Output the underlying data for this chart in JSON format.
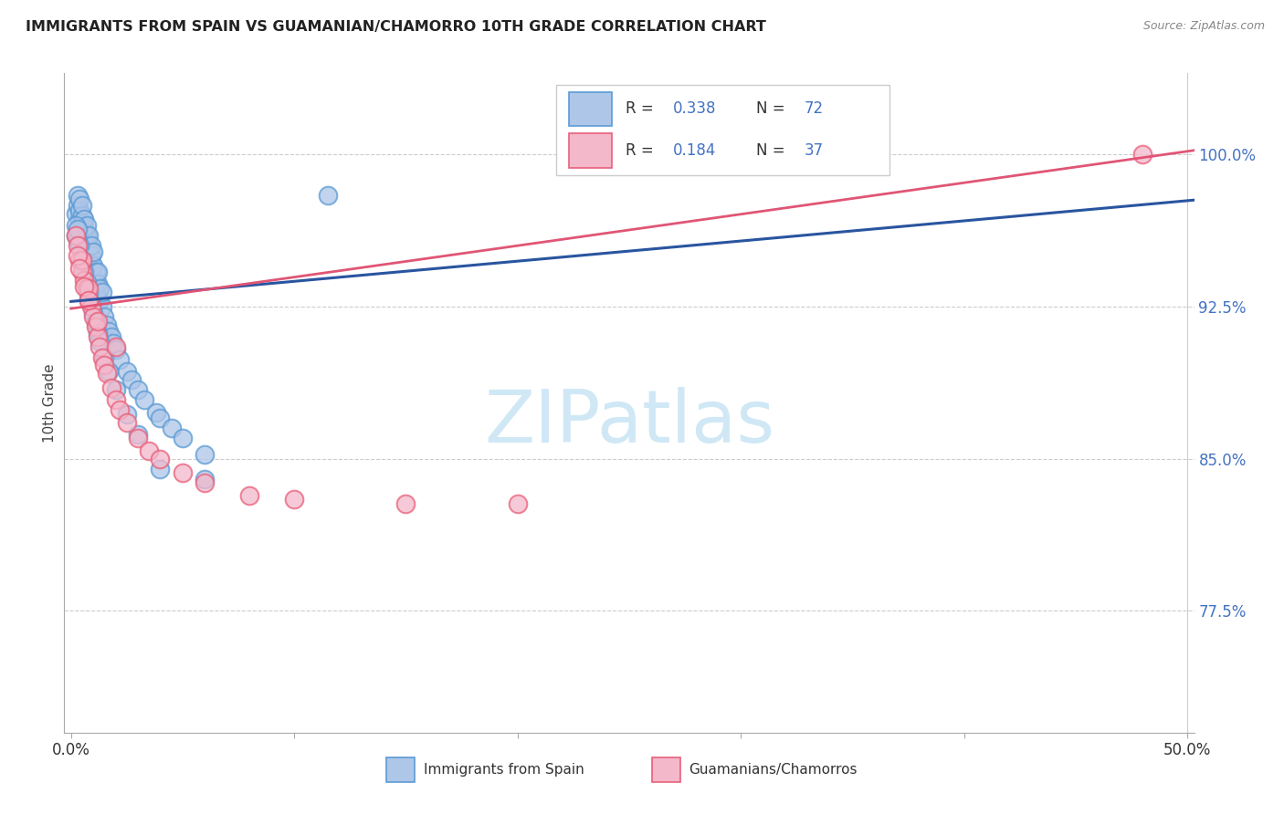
{
  "title": "IMMIGRANTS FROM SPAIN VS GUAMANIAN/CHAMORRO 10TH GRADE CORRELATION CHART",
  "source": "Source: ZipAtlas.com",
  "ylabel": "10th Grade",
  "ylabel_tick_vals": [
    0.775,
    0.85,
    0.925,
    1.0
  ],
  "xlim": [
    -0.003,
    0.503
  ],
  "ylim": [
    0.715,
    1.04
  ],
  "blue_color_face": "#aec6e8",
  "blue_color_edge": "#5b9bd5",
  "pink_color_face": "#f4b8cb",
  "pink_color_edge": "#e8607a",
  "trendline_blue": "#2955a0",
  "trendline_pink": "#e05575",
  "watermark_color": "#d0e8f5",
  "watermark_text": "ZIPatlas",
  "legend_label1": "Immigrants from Spain",
  "legend_label2": "Guamanians/Chamorros",
  "blue_trendline_x": [
    0.0,
    0.503
  ],
  "blue_trendline_y": [
    0.9275,
    0.9775
  ],
  "pink_trendline_x": [
    0.0,
    0.503
  ],
  "pink_trendline_y": [
    0.924,
    1.002
  ],
  "blue_x": [
    0.002,
    0.003,
    0.003,
    0.004,
    0.004,
    0.004,
    0.005,
    0.005,
    0.005,
    0.005,
    0.006,
    0.006,
    0.006,
    0.007,
    0.007,
    0.007,
    0.008,
    0.008,
    0.008,
    0.009,
    0.009,
    0.009,
    0.01,
    0.01,
    0.01,
    0.011,
    0.011,
    0.012,
    0.012,
    0.012,
    0.013,
    0.013,
    0.014,
    0.014,
    0.015,
    0.016,
    0.017,
    0.018,
    0.019,
    0.02,
    0.022,
    0.025,
    0.027,
    0.03,
    0.033,
    0.038,
    0.04,
    0.045,
    0.05,
    0.06,
    0.002,
    0.002,
    0.003,
    0.003,
    0.004,
    0.005,
    0.006,
    0.007,
    0.008,
    0.009,
    0.01,
    0.011,
    0.012,
    0.013,
    0.015,
    0.017,
    0.02,
    0.025,
    0.03,
    0.04,
    0.06,
    0.115
  ],
  "blue_y": [
    0.971,
    0.975,
    0.98,
    0.968,
    0.972,
    0.978,
    0.963,
    0.967,
    0.97,
    0.975,
    0.96,
    0.964,
    0.968,
    0.955,
    0.96,
    0.965,
    0.95,
    0.955,
    0.96,
    0.945,
    0.95,
    0.955,
    0.94,
    0.945,
    0.952,
    0.936,
    0.942,
    0.93,
    0.936,
    0.942,
    0.928,
    0.934,
    0.925,
    0.932,
    0.92,
    0.916,
    0.913,
    0.91,
    0.907,
    0.904,
    0.899,
    0.893,
    0.889,
    0.884,
    0.879,
    0.873,
    0.87,
    0.865,
    0.86,
    0.852,
    0.96,
    0.965,
    0.958,
    0.963,
    0.955,
    0.948,
    0.942,
    0.937,
    0.931,
    0.926,
    0.922,
    0.917,
    0.912,
    0.908,
    0.9,
    0.893,
    0.884,
    0.872,
    0.862,
    0.845,
    0.84,
    0.98
  ],
  "pink_x": [
    0.002,
    0.003,
    0.004,
    0.005,
    0.005,
    0.006,
    0.007,
    0.008,
    0.008,
    0.009,
    0.01,
    0.011,
    0.012,
    0.013,
    0.014,
    0.015,
    0.016,
    0.018,
    0.02,
    0.022,
    0.025,
    0.03,
    0.035,
    0.04,
    0.05,
    0.06,
    0.08,
    0.1,
    0.15,
    0.2,
    0.003,
    0.004,
    0.006,
    0.008,
    0.012,
    0.02,
    0.48
  ],
  "pink_y": [
    0.96,
    0.955,
    0.948,
    0.942,
    0.948,
    0.938,
    0.934,
    0.928,
    0.934,
    0.925,
    0.92,
    0.915,
    0.91,
    0.905,
    0.9,
    0.896,
    0.892,
    0.885,
    0.879,
    0.874,
    0.868,
    0.86,
    0.854,
    0.85,
    0.843,
    0.838,
    0.832,
    0.83,
    0.828,
    0.828,
    0.95,
    0.944,
    0.935,
    0.928,
    0.918,
    0.905,
    1.0
  ]
}
